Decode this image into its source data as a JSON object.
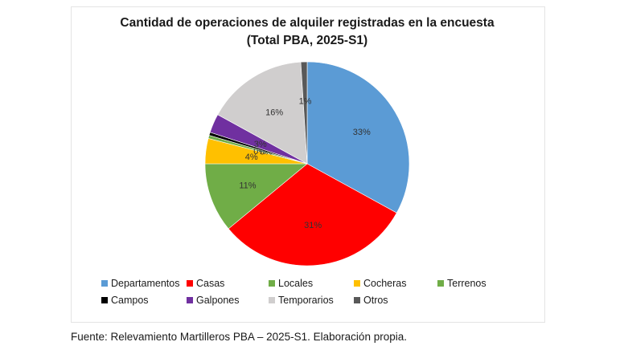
{
  "chart_data": {
    "type": "pie",
    "title": "Cantidad de operaciones de alquiler registradas en la encuesta",
    "subtitle": "(Total PBA, 2025-S1)",
    "slices": [
      {
        "name": "Departamentos",
        "value": 33,
        "label": "33%",
        "color": "#5b9bd5"
      },
      {
        "name": "Casas",
        "value": 31,
        "label": "31%",
        "color": "#ff0000"
      },
      {
        "name": "Locales",
        "value": 11,
        "label": "11%",
        "color": "#70ad47"
      },
      {
        "name": "Cocheras",
        "value": 4,
        "label": "4%",
        "color": "#ffc000"
      },
      {
        "name": "Terrenos",
        "value": 0.5,
        "label": "0%",
        "color": "#70ad47"
      },
      {
        "name": "Campos",
        "value": 0.5,
        "label": "0%",
        "color": "#000000"
      },
      {
        "name": "Galpones",
        "value": 3,
        "label": "3%",
        "color": "#7030a0"
      },
      {
        "name": "Temporarios",
        "value": 16,
        "label": "16%",
        "color": "#d0cece"
      },
      {
        "name": "Otros",
        "value": 1,
        "label": "1%",
        "color": "#595959"
      }
    ],
    "legend_position": "bottom"
  },
  "source_note": "Fuente: Relevamiento Martilleros PBA – 2025-S1. Elaboración propia."
}
